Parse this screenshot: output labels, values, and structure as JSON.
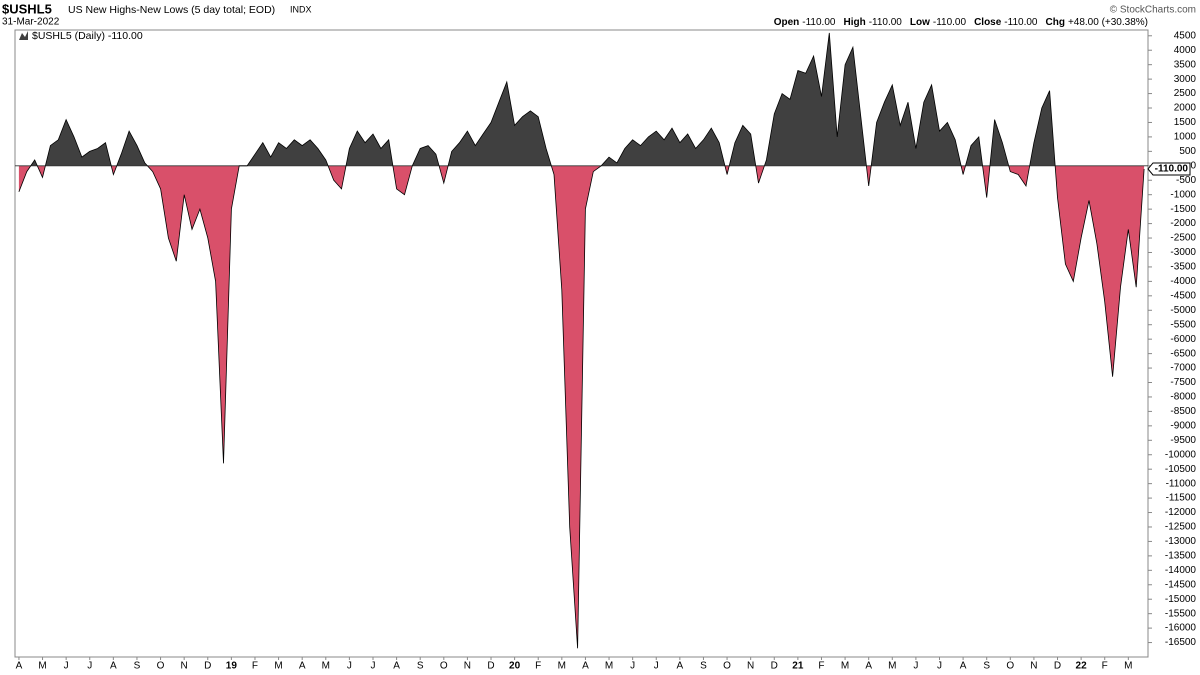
{
  "chart_data": {
    "type": "area",
    "symbol": "$USHL5",
    "title": "US New Highs-New Lows (5 day total; EOD)",
    "exchange": "INDX",
    "date": "31-Mar-2022",
    "source": "© StockCharts.com",
    "quote": [
      {
        "label": "Open",
        "value": "-110.00"
      },
      {
        "label": "High",
        "value": "-110.00"
      },
      {
        "label": "Low",
        "value": "-110.00"
      },
      {
        "label": "Close",
        "value": "-110.00"
      },
      {
        "label": "Chg",
        "value": "+48.00 (+30.38%)"
      }
    ],
    "legend": "$USHL5 (Daily) -110.00",
    "last_value_label": "-110.00",
    "positive_color": "#404040",
    "negative_color": "#d9506a",
    "line_color": "#000000",
    "values": [
      -900,
      -200,
      200,
      -400,
      700,
      900,
      1600,
      1000,
      300,
      500,
      600,
      800,
      -300,
      400,
      1200,
      700,
      100,
      -200,
      -800,
      -2500,
      -3300,
      -1000,
      -2200,
      -1500,
      -2500,
      -4000,
      -10300,
      -1500,
      0,
      0,
      400,
      800,
      300,
      800,
      600,
      900,
      700,
      900,
      600,
      200,
      -500,
      -800,
      600,
      1200,
      800,
      1100,
      600,
      900,
      -800,
      -1000,
      0,
      600,
      700,
      400,
      -600,
      500,
      800,
      1200,
      700,
      1100,
      1500,
      2200,
      2900,
      1400,
      1700,
      1900,
      1700,
      600,
      -300,
      -4300,
      -12500,
      -16700,
      -1500,
      -200,
      0,
      300,
      100,
      600,
      900,
      700,
      1000,
      1200,
      900,
      1300,
      800,
      1100,
      600,
      900,
      1300,
      800,
      -300,
      800,
      1400,
      1100,
      -600,
      200,
      1800,
      2500,
      2300,
      3300,
      3200,
      3800,
      2400,
      4600,
      1000,
      3500,
      4100,
      1700,
      -700,
      1500,
      2200,
      2800,
      1400,
      2200,
      600,
      2200,
      2800,
      1200,
      1500,
      900,
      -300,
      700,
      1000,
      -1100,
      1600,
      800,
      -200,
      -300,
      -700,
      800,
      2000,
      2600,
      -1100,
      -3400,
      -4000,
      -2500,
      -1200,
      -2700,
      -4700,
      -7300,
      -4200,
      -2200,
      -4200,
      -110
    ],
    "ylim": [
      -17000,
      4700
    ],
    "yticks": [
      4500,
      4000,
      3500,
      3000,
      2500,
      2000,
      1500,
      1000,
      500,
      0,
      -500,
      -1000,
      -1500,
      -2000,
      -2500,
      -3000,
      -3500,
      -4000,
      -4500,
      -5000,
      -5500,
      -6000,
      -6500,
      -7000,
      -7500,
      -8000,
      -8500,
      -9000,
      -9500,
      -10000,
      -10500,
      -11000,
      -11500,
      -12000,
      -12500,
      -13000,
      -13500,
      -14000,
      -14500,
      -15000,
      -15500,
      -16000,
      -16500
    ],
    "xlim": [
      0,
      144
    ],
    "xticks": [
      {
        "value": 0,
        "label": "A"
      },
      {
        "value": 3,
        "label": "M"
      },
      {
        "value": 6,
        "label": "J"
      },
      {
        "value": 9,
        "label": "J"
      },
      {
        "value": 12,
        "label": "A"
      },
      {
        "value": 15,
        "label": "S"
      },
      {
        "value": 18,
        "label": "O"
      },
      {
        "value": 21,
        "label": "N"
      },
      {
        "value": 24,
        "label": "D"
      },
      {
        "value": 27,
        "label": "19"
      },
      {
        "value": 30,
        "label": "F"
      },
      {
        "value": 33,
        "label": "M"
      },
      {
        "value": 36,
        "label": "A"
      },
      {
        "value": 39,
        "label": "M"
      },
      {
        "value": 42,
        "label": "J"
      },
      {
        "value": 45,
        "label": "J"
      },
      {
        "value": 48,
        "label": "A"
      },
      {
        "value": 51,
        "label": "S"
      },
      {
        "value": 54,
        "label": "O"
      },
      {
        "value": 57,
        "label": "N"
      },
      {
        "value": 60,
        "label": "D"
      },
      {
        "value": 63,
        "label": "20"
      },
      {
        "value": 66,
        "label": "F"
      },
      {
        "value": 69,
        "label": "M"
      },
      {
        "value": 72,
        "label": "A"
      },
      {
        "value": 75,
        "label": "M"
      },
      {
        "value": 78,
        "label": "J"
      },
      {
        "value": 81,
        "label": "J"
      },
      {
        "value": 84,
        "label": "A"
      },
      {
        "value": 87,
        "label": "S"
      },
      {
        "value": 90,
        "label": "O"
      },
      {
        "value": 93,
        "label": "N"
      },
      {
        "value": 96,
        "label": "D"
      },
      {
        "value": 99,
        "label": "21"
      },
      {
        "value": 102,
        "label": "F"
      },
      {
        "value": 105,
        "label": "M"
      },
      {
        "value": 108,
        "label": "A"
      },
      {
        "value": 111,
        "label": "M"
      },
      {
        "value": 114,
        "label": "J"
      },
      {
        "value": 117,
        "label": "J"
      },
      {
        "value": 120,
        "label": "A"
      },
      {
        "value": 123,
        "label": "S"
      },
      {
        "value": 126,
        "label": "O"
      },
      {
        "value": 129,
        "label": "N"
      },
      {
        "value": 132,
        "label": "D"
      },
      {
        "value": 135,
        "label": "22"
      },
      {
        "value": 138,
        "label": "F"
      },
      {
        "value": 141,
        "label": "M"
      }
    ]
  }
}
